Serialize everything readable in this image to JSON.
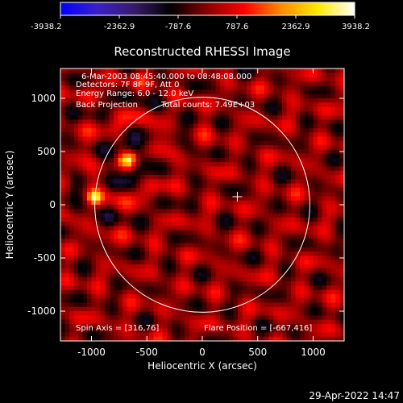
{
  "colorbar": {
    "ticks": [
      "-3938.2",
      "-2362.9",
      "-787.6",
      "787.6",
      "2362.9",
      "3938.2"
    ],
    "range": [
      -3938.2,
      3938.2
    ],
    "colormap": [
      "#0000ff",
      "#3a20c8",
      "#3a1a6a",
      "#000000",
      "#8a0000",
      "#ff0000",
      "#ff8a00",
      "#ffe800",
      "#ffffff"
    ]
  },
  "footer": {
    "timestamp": "29-Apr-2022 14:47"
  },
  "chart_data": {
    "type": "heatmap",
    "title": "Reconstructed RHESSI Image",
    "xlabel": "Heliocentric X (arcsec)",
    "ylabel": "Heliocentric Y (arcsec)",
    "xlim": [
      -1280,
      1280
    ],
    "ylim": [
      -1280,
      1280
    ],
    "xticks": [
      "-1000",
      "-500",
      "0",
      "500",
      "1000"
    ],
    "yticks": [
      "-1000",
      "-500",
      "0",
      "500",
      "1000"
    ],
    "xtick_values": [
      -1000,
      -500,
      0,
      500,
      1000
    ],
    "ytick_values": [
      -1000,
      -500,
      0,
      500,
      1000
    ],
    "annotations": [
      "6-Mar-2003 08:45:40.000 to 08:48:08.000",
      "Detectors: 7F 8F 9F, Att 0",
      "Energy Range: 6.0 - 12.0 keV",
      "Back Projection",
      "Total counts: 7.49E+03"
    ],
    "spin_axis_label": "Spin Axis = [316,76]",
    "flare_position_label": "Flare Position = [-667,416]",
    "spin_axis": [
      316,
      76
    ],
    "flare_position": [
      -667,
      416
    ],
    "solar_limb_radius": 970,
    "peak_value": 3938.2,
    "secondary_sources": [
      {
        "x": -970,
        "y": 70,
        "value": 2362.9
      }
    ]
  }
}
